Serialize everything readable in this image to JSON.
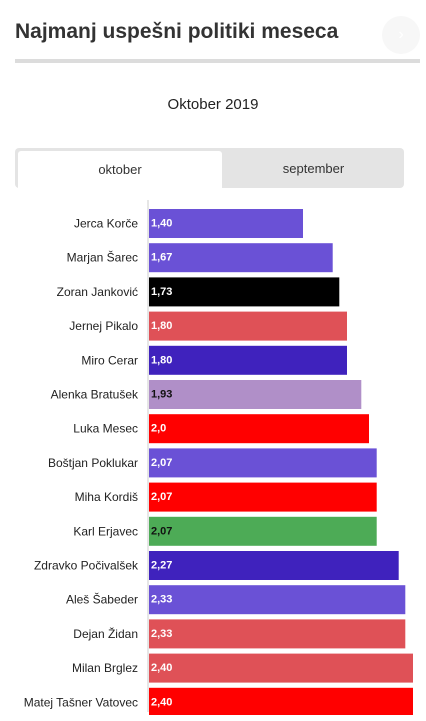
{
  "header": {
    "title": "Najmanj uspešni politiki meseca",
    "corner_icon": "chevron-icon"
  },
  "tabs": [
    {
      "label": "oktober",
      "active": true
    },
    {
      "label": "september",
      "active": false
    }
  ],
  "chart_data": {
    "type": "bar",
    "orientation": "horizontal",
    "title": "Oktober 2019",
    "xlim": [
      0,
      2.5
    ],
    "categories": [
      "Jerca Korče",
      "Marjan Šarec",
      "Zoran Janković",
      "Jernej Pikalo",
      "Miro Cerar",
      "Alenka Bratušek",
      "Luka Mesec",
      "Boštjan Poklukar",
      "Miha Kordiš",
      "Karl Erjavec",
      "Zdravko Počivalšek",
      "Aleš Šabeder",
      "Dejan Židan",
      "Milan Brglez",
      "Matej Tašner Vatovec"
    ],
    "values": [
      1.4,
      1.67,
      1.73,
      1.8,
      1.8,
      1.93,
      2.0,
      2.07,
      2.07,
      2.07,
      2.27,
      2.33,
      2.33,
      2.4,
      2.4
    ],
    "value_labels": [
      "1,40",
      "1,67",
      "1,73",
      "1,80",
      "1,80",
      "1,93",
      "2,0",
      "2,07",
      "2,07",
      "2,07",
      "2,27",
      "2,33",
      "2,33",
      "2,40",
      "2,40"
    ],
    "colors": [
      "#6a51d6",
      "#6a51d6",
      "#000000",
      "#df5157",
      "#3f22bd",
      "#b08fc8",
      "#ff0000",
      "#6a51d6",
      "#ff0000",
      "#4dab56",
      "#3f22bd",
      "#6a51d6",
      "#df5157",
      "#df5157",
      "#ff0000"
    ],
    "label_colors": [
      "#ffffff",
      "#ffffff",
      "#ffffff",
      "#ffffff",
      "#ffffff",
      "#111111",
      "#ffffff",
      "#ffffff",
      "#ffffff",
      "#111111",
      "#ffffff",
      "#ffffff",
      "#ffffff",
      "#ffffff",
      "#ffffff"
    ],
    "grid": false,
    "legend": "none"
  }
}
